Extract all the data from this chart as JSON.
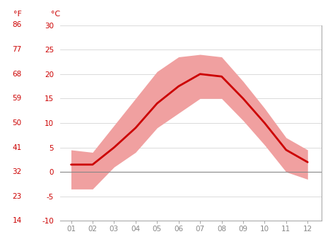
{
  "months": [
    1,
    2,
    3,
    4,
    5,
    6,
    7,
    8,
    9,
    10,
    11,
    12
  ],
  "month_labels": [
    "01",
    "02",
    "03",
    "04",
    "05",
    "06",
    "07",
    "08",
    "09",
    "10",
    "11",
    "12"
  ],
  "avg_temp_c": [
    1.5,
    1.5,
    5.0,
    9.0,
    14.0,
    17.5,
    20.0,
    19.5,
    15.0,
    10.0,
    4.5,
    2.0
  ],
  "max_temp_c": [
    4.5,
    4.0,
    9.5,
    15.0,
    20.5,
    23.5,
    24.0,
    23.5,
    18.5,
    13.0,
    7.0,
    4.5
  ],
  "min_temp_c": [
    -3.5,
    -3.5,
    1.0,
    4.0,
    9.0,
    12.0,
    15.0,
    15.0,
    10.5,
    5.5,
    0.0,
    -1.5
  ],
  "ylim_c": [
    -10,
    30
  ],
  "yticks_c": [
    -10,
    -5,
    0,
    5,
    10,
    15,
    20,
    25,
    30
  ],
  "yticks_f": [
    14,
    23,
    32,
    41,
    50,
    59,
    68,
    77,
    86
  ],
  "line_color": "#cc0000",
  "band_color": "#f0a0a0",
  "zero_line_color": "#888888",
  "background_color": "#ffffff",
  "grid_color": "#cccccc",
  "label_color": "#cc0000",
  "tick_color": "#888888",
  "title_f": "°F",
  "title_c": "°C"
}
